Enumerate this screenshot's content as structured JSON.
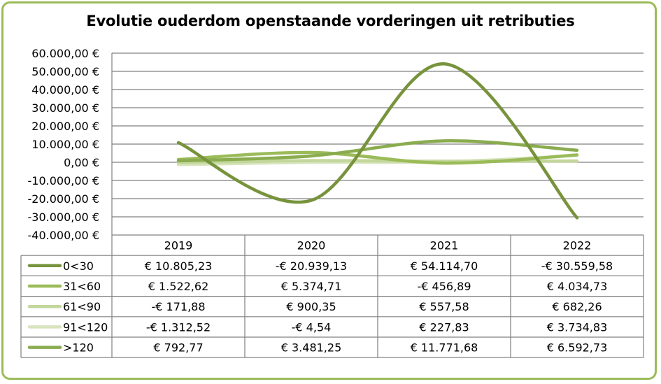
{
  "chart_data": {
    "type": "line",
    "title": "Evolutie ouderdom openstaande vorderingen uit retributies",
    "categories": [
      "2019",
      "2020",
      "2021",
      "2022"
    ],
    "ylim": [
      -40000,
      60000
    ],
    "y_ticks": [
      "60.000,00 €",
      "50.000,00 €",
      "40.000,00 €",
      "30.000,00 €",
      "20.000,00 €",
      "10.000,00 €",
      "0,00 €",
      "-10.000,00 €",
      "-20.000,00 €",
      "-30.000,00 €",
      "-40.000,00 €"
    ],
    "grid": true,
    "legend": "data-table",
    "series": [
      {
        "name": "0<30",
        "color": "#77933c",
        "values": [
          10805.23,
          -20939.13,
          54114.7,
          -30559.58
        ],
        "labels": [
          "€ 10.805,23",
          "-€ 20.939,13",
          "€ 54.114,70",
          "-€ 30.559,58"
        ]
      },
      {
        "name": "31<60",
        "color": "#9bbb59",
        "values": [
          1522.62,
          5374.71,
          -456.89,
          4034.73
        ],
        "labels": [
          "€ 1.522,62",
          "€ 5.374,71",
          "-€ 456,89",
          "€ 4.034,73"
        ]
      },
      {
        "name": "61<90",
        "color": "#c3d69b",
        "values": [
          -171.88,
          900.35,
          557.58,
          682.26
        ],
        "labels": [
          "-€ 171,88",
          "€ 900,35",
          "€ 557,58",
          "€ 682,26"
        ]
      },
      {
        "name": "91<120",
        "color": "#d7e4bd",
        "values": [
          -1312.52,
          -4.54,
          227.83,
          3734.83
        ],
        "labels": [
          "-€ 1.312,52",
          "-€ 4,54",
          "€ 227,83",
          "€ 3.734,83"
        ]
      },
      {
        "name": ">120",
        "color": "#8aac4f",
        "values": [
          792.77,
          3481.25,
          11771.68,
          6592.73
        ],
        "labels": [
          "€ 792,77",
          "€ 3.481,25",
          "€ 11.771,68",
          "€ 6.592,73"
        ]
      }
    ]
  }
}
